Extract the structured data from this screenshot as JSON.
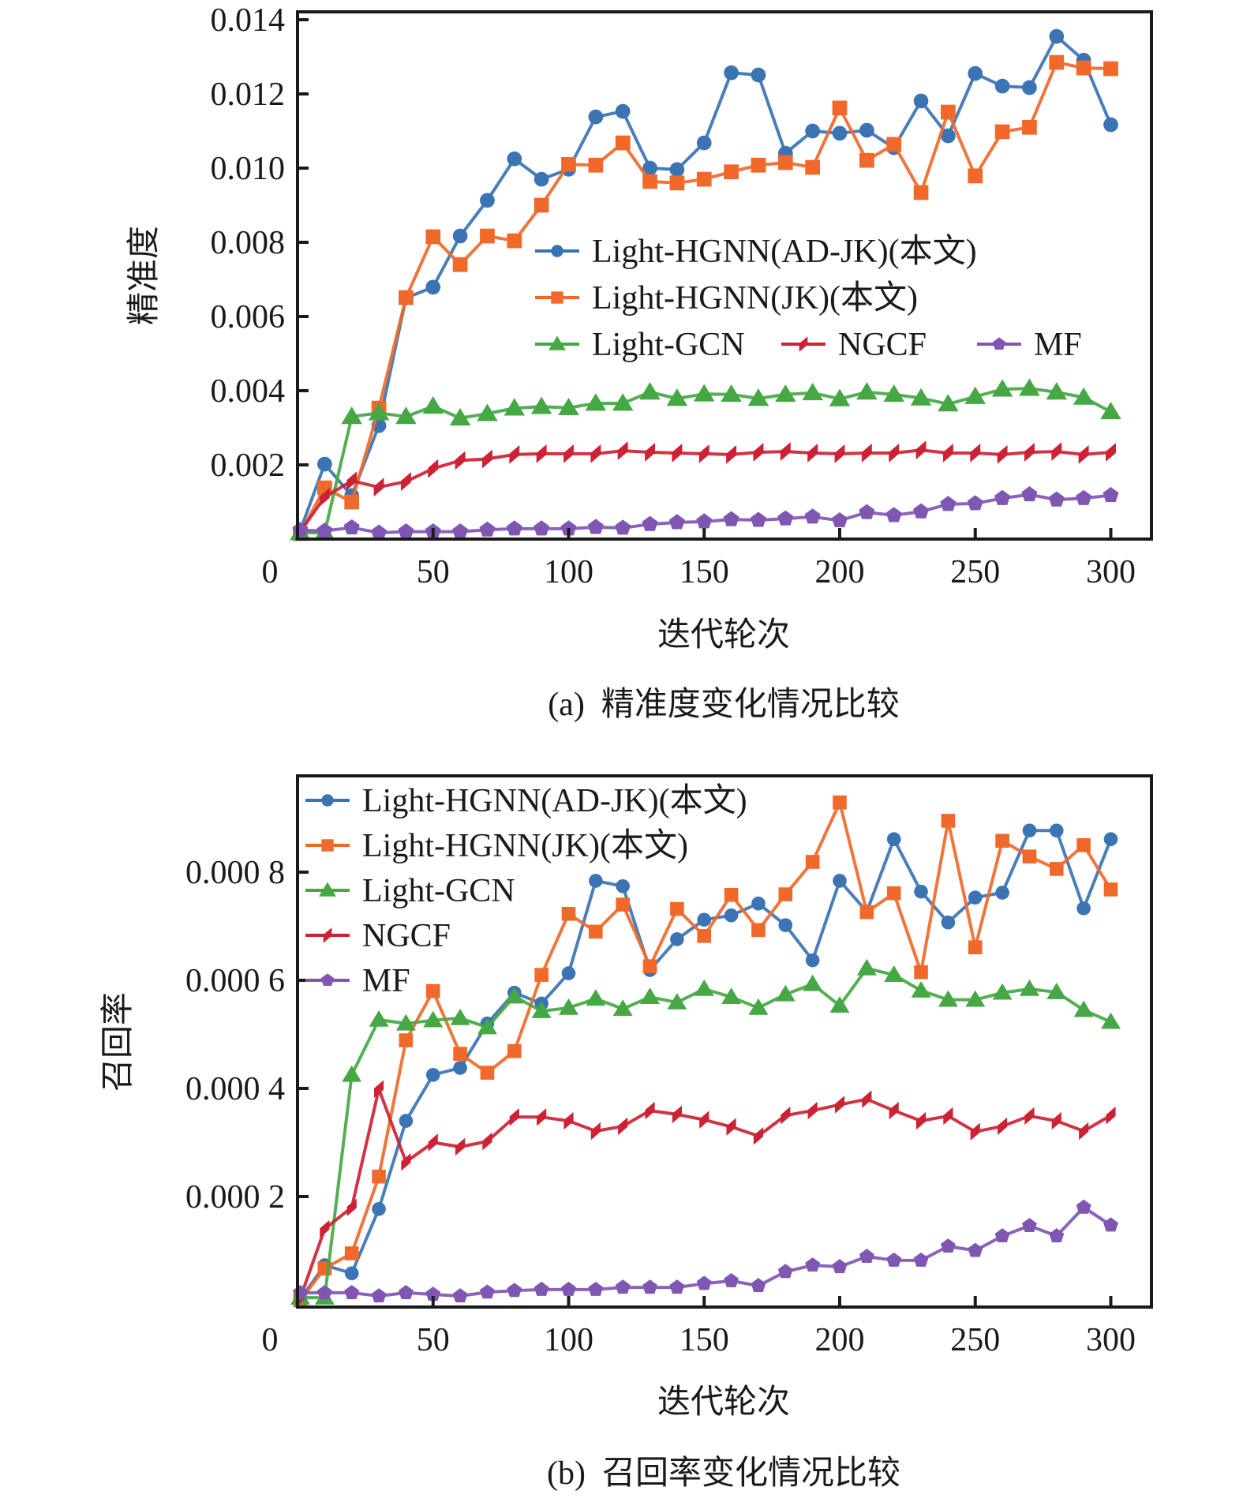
{
  "chart_data": [
    {
      "id": "precision",
      "type": "line",
      "title": "",
      "caption": "(a)  精准度变化情况比较",
      "xlabel": "迭代轮次",
      "ylabel": "精准度",
      "xlim": [
        0,
        315
      ],
      "ylim": [
        0,
        0.0142
      ],
      "xticks": [
        50,
        100,
        150,
        200,
        250,
        300
      ],
      "xtick_labels": [
        "50",
        "100",
        "150",
        "200",
        "250",
        "300"
      ],
      "origin_label": "0",
      "yticks": [
        0.002,
        0.004,
        0.006,
        0.008,
        0.01,
        0.012,
        0.014
      ],
      "ytick_labels": [
        "0.002",
        "0.004",
        "0.006",
        "0.008",
        "0.010",
        "0.012",
        "0.014"
      ],
      "grid": false,
      "legend_position": "center-right",
      "legend_layout": [
        [
          0
        ],
        [
          1
        ],
        [
          2,
          3,
          4
        ]
      ],
      "x": [
        1,
        10,
        20,
        30,
        40,
        50,
        60,
        70,
        80,
        90,
        100,
        110,
        120,
        130,
        140,
        150,
        160,
        170,
        180,
        190,
        200,
        210,
        220,
        230,
        240,
        250,
        260,
        270,
        280,
        290,
        300
      ],
      "series": [
        {
          "name": "Light-HGNN(AD-JK)(本文)",
          "color": "#3b73b3",
          "marker": "circle",
          "values": [
            0.00023,
            0.00202,
            0.00117,
            0.00306,
            0.0065,
            0.00679,
            0.00817,
            0.00913,
            0.01025,
            0.0097,
            0.00997,
            0.01138,
            0.01153,
            0.01,
            0.00996,
            0.01068,
            0.01257,
            0.01251,
            0.0104,
            0.011,
            0.01094,
            0.01102,
            0.01055,
            0.01181,
            0.01087,
            0.01255,
            0.01221,
            0.01217,
            0.01355,
            0.01291,
            0.01117
          ]
        },
        {
          "name": "Light-HGNN(JK)(本文)",
          "color": "#f0692a",
          "marker": "square",
          "values": [
            0.00015,
            0.00138,
            0.001,
            0.00353,
            0.00651,
            0.00815,
            0.0074,
            0.00817,
            0.00804,
            0.009,
            0.0101,
            0.01008,
            0.01068,
            0.00964,
            0.0096,
            0.0097,
            0.0099,
            0.01008,
            0.01015,
            0.01002,
            0.01162,
            0.01021,
            0.01064,
            0.00934,
            0.01151,
            0.00979,
            0.01098,
            0.0111,
            0.01285,
            0.0127,
            0.01268
          ]
        },
        {
          "name": "Light-GCN",
          "color": "#45a844",
          "marker": "triangle",
          "values": [
            0.00017,
            0.00017,
            0.0033,
            0.0034,
            0.0033,
            0.00358,
            0.00326,
            0.00338,
            0.00353,
            0.00357,
            0.00354,
            0.00366,
            0.00366,
            0.00396,
            0.00379,
            0.00391,
            0.0039,
            0.00379,
            0.0039,
            0.00394,
            0.00378,
            0.00396,
            0.0039,
            0.0038,
            0.00364,
            0.00384,
            0.00404,
            0.00406,
            0.00396,
            0.00382,
            0.00343
          ]
        },
        {
          "name": "NGCF",
          "color": "#cc2233",
          "marker": "parallelogram",
          "values": [
            0.0002,
            0.00113,
            0.00157,
            0.0014,
            0.00155,
            0.0019,
            0.00212,
            0.00216,
            0.00228,
            0.0023,
            0.0023,
            0.0023,
            0.00238,
            0.00234,
            0.00232,
            0.0023,
            0.00228,
            0.00234,
            0.00236,
            0.00232,
            0.0023,
            0.00232,
            0.00232,
            0.0024,
            0.00232,
            0.00232,
            0.00228,
            0.00234,
            0.00236,
            0.00228,
            0.00234
          ]
        },
        {
          "name": "MF",
          "color": "#7f57b2",
          "marker": "pentagon",
          "values": [
            0.00024,
            0.00022,
            0.00031,
            0.00017,
            0.0002,
            0.0002,
            0.0002,
            0.00025,
            0.00028,
            0.00028,
            0.00028,
            0.00032,
            0.0003,
            0.0004,
            0.00045,
            0.00047,
            0.00053,
            0.00051,
            0.00055,
            0.0006,
            0.0005,
            0.00072,
            0.00064,
            0.00074,
            0.00094,
            0.00096,
            0.0011,
            0.0012,
            0.00106,
            0.0011,
            0.00118
          ]
        }
      ]
    },
    {
      "id": "recall",
      "type": "line",
      "title": "",
      "caption": "(b)  召回率变化情况比较",
      "xlabel": "迭代轮次",
      "ylabel": "召回率",
      "xlim": [
        0,
        315
      ],
      "ylim": [
        0,
        0.000978
      ],
      "xticks": [
        50,
        100,
        150,
        200,
        250,
        300
      ],
      "xtick_labels": [
        "50",
        "100",
        "150",
        "200",
        "250",
        "300"
      ],
      "origin_label": "0",
      "yticks": [
        0.0002,
        0.0004,
        0.0006,
        0.0008
      ],
      "ytick_labels": [
        "0.000 2",
        "0.000 4",
        "0.000 6",
        "0.000 8"
      ],
      "grid": false,
      "legend_position": "top-left",
      "legend_layout": [
        [
          0
        ],
        [
          1
        ],
        [
          2
        ],
        [
          3
        ],
        [
          4
        ]
      ],
      "x": [
        1,
        10,
        20,
        30,
        40,
        50,
        60,
        70,
        80,
        90,
        100,
        110,
        120,
        130,
        140,
        150,
        160,
        170,
        180,
        190,
        200,
        210,
        220,
        230,
        240,
        250,
        260,
        270,
        280,
        290,
        300
      ],
      "series": [
        {
          "name": "Light-HGNN(AD-JK)(本文)",
          "color": "#3b73b3",
          "marker": "circle",
          "values": [
            1e-05,
            7.3e-05,
            5.8e-05,
            0.000177,
            0.00034,
            0.000425,
            0.000438,
            0.00052,
            0.000577,
            0.000557,
            0.000613,
            0.000784,
            0.000774,
            0.000619,
            0.000676,
            0.000712,
            0.00072,
            0.000742,
            0.000702,
            0.000637,
            0.000784,
            0.000727,
            0.000861,
            0.000764,
            0.000707,
            0.000753,
            0.000762,
            0.000877,
            0.000877,
            0.000733,
            0.000861
          ]
        },
        {
          "name": "Light-HGNN(JK)(本文)",
          "color": "#f0692a",
          "marker": "square",
          "values": [
            8e-06,
            6.7e-05,
            9.5e-05,
            0.000237,
            0.000489,
            0.00058,
            0.000464,
            0.000429,
            0.000469,
            0.00061,
            0.000723,
            0.00069,
            0.00074,
            0.000626,
            0.000732,
            0.000682,
            0.000758,
            0.000693,
            0.000759,
            0.000819,
            0.000929,
            0.000726,
            0.000761,
            0.000615,
            0.000895,
            0.000661,
            0.000858,
            0.000829,
            0.000806,
            0.00085,
            0.000768
          ]
        },
        {
          "name": "Light-GCN",
          "color": "#45a844",
          "marker": "triangle",
          "values": [
            1.3e-05,
            1.3e-05,
            0.000425,
            0.000527,
            0.00052,
            0.000526,
            0.00053,
            0.000513,
            0.00057,
            0.000543,
            0.000549,
            0.000566,
            0.000547,
            0.000569,
            0.000559,
            0.000584,
            0.000569,
            0.000549,
            0.000574,
            0.000593,
            0.000553,
            0.000622,
            0.00061,
            0.000581,
            0.000564,
            0.000564,
            0.000577,
            0.000584,
            0.000578,
            0.000545,
            0.000523
          ]
        },
        {
          "name": "NGCF",
          "color": "#cc2233",
          "marker": "parallelogram",
          "values": [
            1.2e-05,
            0.00014,
            0.00018,
            0.000399,
            0.000264,
            0.0003,
            0.000292,
            0.000302,
            0.000347,
            0.000347,
            0.00034,
            0.000321,
            0.00033,
            0.000359,
            0.000352,
            0.000342,
            0.000329,
            0.000312,
            0.00035,
            0.000359,
            0.00037,
            0.00038,
            0.000359,
            0.00034,
            0.000349,
            0.00032,
            0.00033,
            0.000349,
            0.00034,
            0.000321,
            0.00035
          ]
        },
        {
          "name": "MF",
          "color": "#7f57b2",
          "marker": "pentagon",
          "values": [
            2.2e-05,
            2.2e-05,
            2.2e-05,
            1.6e-05,
            2.2e-05,
            1.9e-05,
            1.6e-05,
            2.3e-05,
            2.6e-05,
            2.8e-05,
            2.8e-05,
            2.8e-05,
            3.2e-05,
            3.2e-05,
            3.2e-05,
            3.9e-05,
            4.4e-05,
            3.5e-05,
            6.1e-05,
            7.3e-05,
            7e-05,
            8.9e-05,
            8.2e-05,
            8.2e-05,
            0.000108,
            0.0001,
            0.000127,
            0.000146,
            0.000127,
            0.00018,
            0.000147
          ]
        }
      ]
    }
  ]
}
